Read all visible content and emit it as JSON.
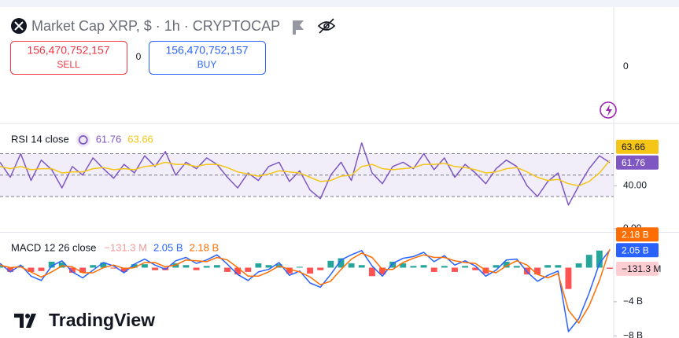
{
  "header": {
    "symbol": "Market Cap XRP, $ · 1h · CRYPTOCAP",
    "sell_price": "156,470,752,157",
    "sell_label": "SELL",
    "spread": "0",
    "buy_price": "156,470,752,157",
    "buy_label": "BUY",
    "price_scale_label": "0"
  },
  "brand": "TradingView",
  "chart_data": [
    {
      "type": "line",
      "title": "RSI 14 close",
      "ylim": [
        -3,
        97.5
      ],
      "yticks": [
        {
          "value": 40,
          "label": "40.00"
        },
        {
          "value": 0,
          "label": "0.00"
        }
      ],
      "hlines": [
        70,
        50,
        30
      ],
      "band_fill": "rgba(126,87,194,0.1)",
      "series": [
        {
          "color": "#7e57c2",
          "values": [
            62,
            48,
            70,
            45,
            64,
            55,
            38,
            58,
            50,
            66,
            56,
            47,
            60,
            52,
            68,
            58,
            72,
            50,
            62,
            56,
            66,
            60,
            48,
            38,
            52,
            45,
            58,
            62,
            44,
            54,
            36,
            28,
            50,
            62,
            45,
            80,
            52,
            42,
            58,
            62,
            56,
            70,
            55,
            66,
            48,
            60,
            52,
            42,
            56,
            64,
            58,
            40,
            30,
            44,
            52,
            22,
            40,
            56,
            68,
            61.76
          ]
        },
        {
          "color": "#f5c518",
          "values": [
            58,
            56,
            58,
            55,
            56,
            56,
            52,
            53,
            53,
            56,
            57,
            55,
            56,
            55,
            58,
            59,
            62,
            60,
            60,
            58,
            60,
            60,
            57,
            53,
            51,
            49,
            51,
            54,
            53,
            52,
            48,
            44,
            45,
            49,
            50,
            58,
            60,
            56,
            55,
            56,
            57,
            60,
            60,
            61,
            58,
            57,
            55,
            52,
            53,
            56,
            57,
            53,
            48,
            45,
            46,
            42,
            40,
            44,
            52,
            63.66
          ]
        }
      ]
    },
    {
      "type": "line",
      "title": "MACD 12 26 close",
      "ylim": [
        -8.25,
        4.1
      ],
      "yticks": [
        {
          "value": -4,
          "label": "−4 B"
        },
        {
          "value": -8,
          "label": "−8 B"
        }
      ],
      "series": [
        {
          "kind": "bar",
          "color": "#ef9a9a",
          "up_color": "#26a69a",
          "down_color": "#ff5252",
          "last_value_label": "−131.3 M",
          "values": [
            0.2,
            -0.5,
            0.2,
            -0.5,
            -0.4,
            0.7,
            0.6,
            -0.6,
            -0.6,
            0.3,
            0.6,
            -0.1,
            -0.5,
            0.4,
            0.4,
            -0.3,
            -0.3,
            0.5,
            0.3,
            -0.3,
            0.2,
            0.3,
            -0.5,
            -0.8,
            -0.5,
            0.5,
            0.3,
            0.4,
            -0.7,
            0.1,
            -0.7,
            -0.3,
            0.8,
            1.1,
            0.5,
            0.3,
            -1.0,
            -0.8,
            0.7,
            0.5,
            0.2,
            0.3,
            -0.5,
            0.2,
            -0.5,
            0.2,
            -0.3,
            -0.7,
            0.3,
            0.7,
            0.2,
            -0.8,
            -0.8,
            0.3,
            0.3,
            -2.5,
            0.5,
            1.5,
            2.0,
            -0.1313
          ]
        },
        {
          "color": "#2962ff",
          "last_value_label": "2.05 B",
          "values": [
            0.5,
            -0.5,
            0.3,
            -1.0,
            -1.5,
            0.2,
            0.8,
            -0.5,
            -1.2,
            -0.3,
            0.6,
            0.2,
            -0.6,
            0.4,
            1.0,
            0.3,
            -0.2,
            0.8,
            1.2,
            0.5,
            0.9,
            1.5,
            0.4,
            -0.8,
            -1.5,
            -0.5,
            -0.2,
            0.6,
            -0.9,
            -0.4,
            -1.8,
            -2.3,
            -0.8,
            0.9,
            1.5,
            2.0,
            0.2,
            -1.0,
            0.5,
            1.1,
            1.3,
            1.8,
            0.7,
            1.4,
            0.3,
            0.8,
            0.2,
            -1.0,
            -0.3,
            0.9,
            1.0,
            -0.5,
            -1.6,
            -0.9,
            -0.4,
            -7.5,
            -6.0,
            -3.0,
            0.5,
            2.05
          ]
        },
        {
          "color": "#ff6d00",
          "last_value_label": "2.18 B",
          "values": [
            0.3,
            0.0,
            0.1,
            -0.5,
            -1.1,
            -0.5,
            0.2,
            0.1,
            -0.6,
            -0.6,
            0.0,
            0.3,
            -0.1,
            0.0,
            0.6,
            0.6,
            0.1,
            0.3,
            0.9,
            0.8,
            0.7,
            1.2,
            0.9,
            0.0,
            -1.0,
            -1.0,
            -0.5,
            0.2,
            -0.2,
            -0.5,
            -1.1,
            -2.0,
            -1.6,
            -0.2,
            1.0,
            1.7,
            1.2,
            -0.2,
            -0.2,
            0.6,
            1.1,
            1.5,
            1.2,
            1.2,
            0.8,
            0.6,
            0.5,
            -0.3,
            -0.6,
            0.2,
            0.8,
            0.3,
            -0.8,
            -1.2,
            -0.7,
            -5.0,
            -6.5,
            -4.5,
            -1.5,
            2.18
          ]
        }
      ]
    }
  ]
}
